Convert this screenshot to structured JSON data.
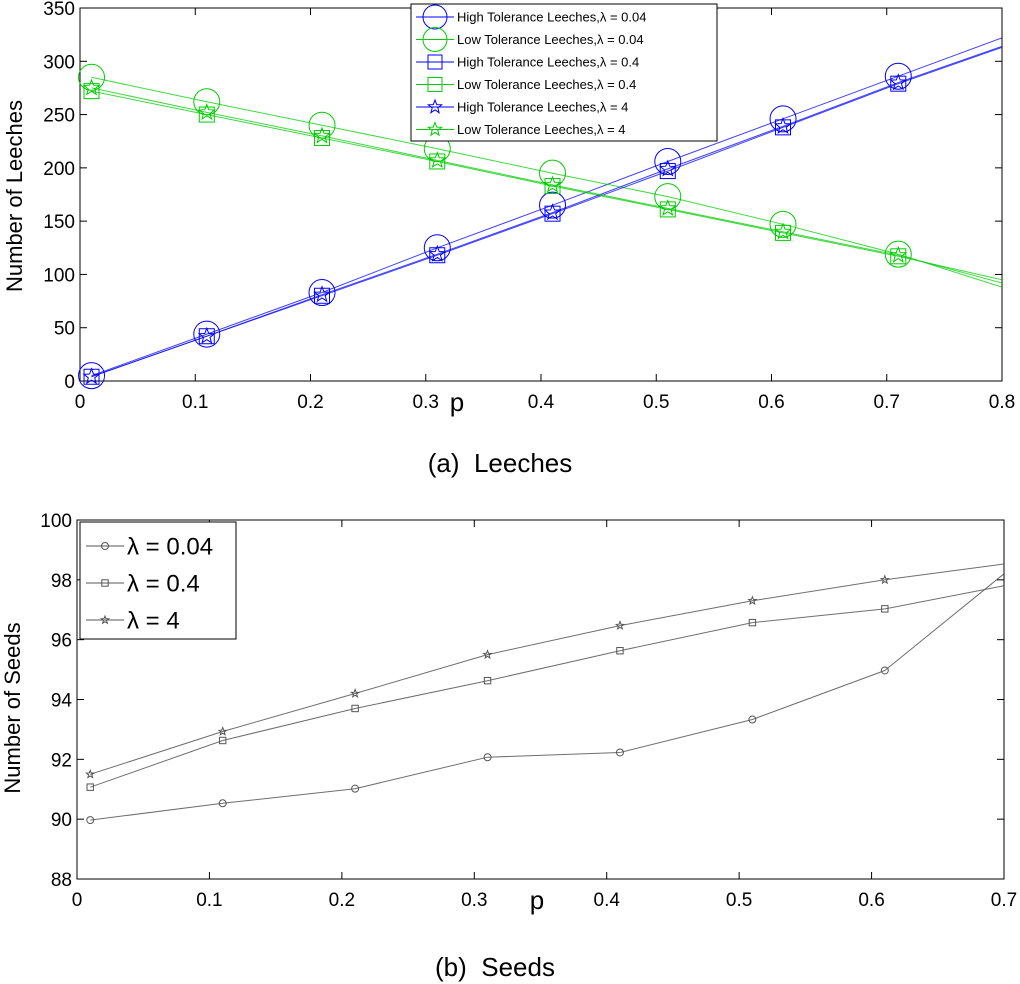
{
  "chart_data": [
    {
      "type": "line",
      "caption": "(a)  Leeches",
      "xlabel": "p",
      "ylabel": "Number of Leeches",
      "xlim": [
        0,
        0.8
      ],
      "ylim": [
        0,
        350
      ],
      "xticks": [
        "0",
        "0.1",
        "0.2",
        "0.3",
        "0.4",
        "0.5",
        "0.6",
        "0.7",
        "0.8"
      ],
      "yticks": [
        "0",
        "50",
        "100",
        "150",
        "200",
        "250",
        "300",
        "350"
      ],
      "x": [
        0.01,
        0.11,
        0.21,
        0.31,
        0.41,
        0.51,
        0.61,
        0.71
      ],
      "grid": false,
      "legend_position": "top-center",
      "series": [
        {
          "name": "High Tolerance Leeches,λ = 0.04",
          "color": "#0000ff",
          "marker": "circle-large",
          "values": [
            5,
            44,
            83,
            125,
            165,
            206,
            246,
            286
          ],
          "line_end": [
            0.8,
            322
          ]
        },
        {
          "name": "Low Tolerance Leeches,λ = 0.04",
          "color": "#00cc00",
          "marker": "circle-large",
          "values": [
            285,
            262,
            240,
            218,
            195,
            173,
            147,
            119
          ],
          "line_end": [
            0.8,
            88
          ]
        },
        {
          "name": "High Tolerance Leeches,λ = 0.4",
          "color": "#0000ff",
          "marker": "square",
          "values": [
            4,
            42,
            80,
            118,
            157,
            197,
            238,
            279
          ],
          "line_end": [
            0.8,
            313
          ]
        },
        {
          "name": "Low Tolerance Leeches,λ = 0.4",
          "color": "#00cc00",
          "marker": "square",
          "values": [
            272,
            250,
            228,
            206,
            183,
            161,
            139,
            117
          ],
          "line_end": [
            0.8,
            95
          ]
        },
        {
          "name": "High Tolerance Leeches,λ = 4",
          "color": "#0000ff",
          "marker": "star",
          "values": [
            4,
            42,
            81,
            119,
            158,
            199,
            239,
            280
          ],
          "line_end": [
            0.8,
            314
          ]
        },
        {
          "name": "Low Tolerance Leeches,λ = 4",
          "color": "#00cc00",
          "marker": "star",
          "values": [
            275,
            252,
            230,
            207,
            184,
            162,
            140,
            118
          ],
          "line_end": [
            0.8,
            92
          ]
        }
      ]
    },
    {
      "type": "line",
      "caption": "(b)  Seeds",
      "xlabel": "p",
      "ylabel": "Number of Seeds",
      "xlim": [
        0,
        0.7
      ],
      "ylim": [
        88,
        100
      ],
      "xticks": [
        "0",
        "0.1",
        "0.2",
        "0.3",
        "0.4",
        "0.5",
        "0.6",
        "0.7"
      ],
      "yticks": [
        "88",
        "90",
        "92",
        "94",
        "96",
        "98",
        "100"
      ],
      "x": [
        0.01,
        0.11,
        0.21,
        0.31,
        0.41,
        0.51,
        0.61
      ],
      "grid": false,
      "legend_position": "top-left",
      "series": [
        {
          "name": "λ = 0.04",
          "color": "#555555",
          "marker": "circle",
          "values": [
            89.97,
            90.53,
            91.02,
            92.07,
            92.23,
            93.33,
            94.97
          ],
          "line_end": [
            0.7,
            98.2
          ]
        },
        {
          "name": "λ = 0.4",
          "color": "#555555",
          "marker": "square",
          "values": [
            91.07,
            92.63,
            93.7,
            94.63,
            95.63,
            96.57,
            97.03
          ],
          "line_end": [
            0.7,
            97.8
          ]
        },
        {
          "name": "λ = 4",
          "color": "#555555",
          "marker": "star",
          "values": [
            91.5,
            92.93,
            94.2,
            95.5,
            96.47,
            97.3,
            98.0
          ],
          "line_end": [
            0.7,
            98.53
          ]
        }
      ]
    }
  ]
}
